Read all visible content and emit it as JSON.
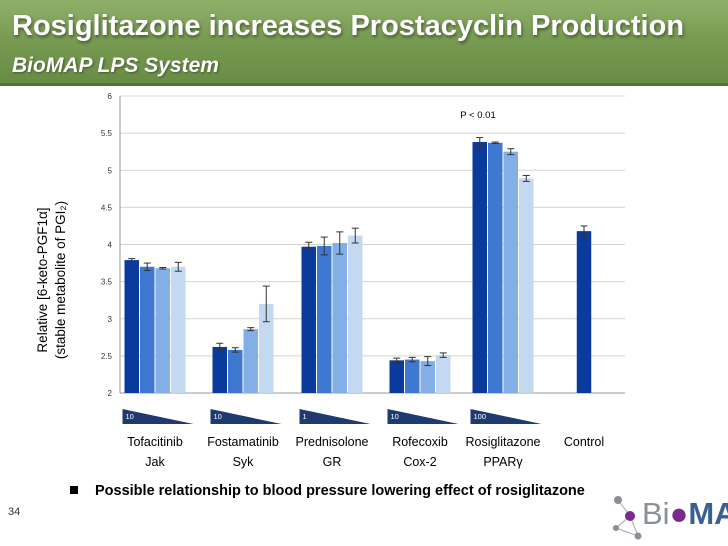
{
  "slide": {
    "title": "Rosiglitazone increases Prostacyclin Production",
    "subtitle": "BioMAP LPS System",
    "page_number": "34",
    "bullet": "Possible relationship to blood pressure lowering effect of rosiglitazone",
    "logo": "BioMAP"
  },
  "colors": {
    "title_bar": "#789b52",
    "series": [
      "#0a3a9c",
      "#3f78d0",
      "#84aee6",
      "#c4d8f2"
    ],
    "control": "#0a3a9c",
    "wedge": "#1e3a70"
  },
  "chart_data": {
    "type": "bar",
    "ylabel_line1": "Relative [6-keto-PGF1α]",
    "ylabel_line2": "(stable metabolite of PGI₂)",
    "ylim": [
      2,
      6
    ],
    "yticks": [
      "2",
      "2.5",
      "3",
      "3.5",
      "4",
      "4.5",
      "5",
      "5.5",
      "6"
    ],
    "grid": true,
    "annotation": "P < 0.01",
    "groups": [
      {
        "label": "Tofacitinib",
        "target": "Jak",
        "top_conc": "10",
        "values": [
          3.79,
          3.7,
          3.68,
          3.7
        ],
        "errors": [
          0.02,
          0.05,
          0.01,
          0.06
        ]
      },
      {
        "label": "Fostamatinib",
        "target": "Syk",
        "top_conc": "10",
        "values": [
          2.62,
          2.58,
          2.86,
          3.2
        ],
        "errors": [
          0.05,
          0.03,
          0.02,
          0.24
        ]
      },
      {
        "label": "Prednisolone",
        "target": "GR",
        "top_conc": "1",
        "values": [
          3.97,
          3.98,
          4.02,
          4.12
        ],
        "errors": [
          0.06,
          0.12,
          0.15,
          0.1
        ]
      },
      {
        "label": "Rofecoxib",
        "target": "Cox-2",
        "top_conc": "10",
        "values": [
          2.44,
          2.45,
          2.43,
          2.51
        ],
        "errors": [
          0.03,
          0.03,
          0.06,
          0.03
        ]
      },
      {
        "label": "Rosiglitazone",
        "target": "PPARγ",
        "top_conc": "100",
        "values": [
          5.38,
          5.37,
          5.25,
          4.89
        ],
        "errors": [
          0.06,
          0.01,
          0.04,
          0.04
        ]
      },
      {
        "label": "Control",
        "target": "",
        "values": [
          4.18
        ],
        "errors": [
          0.07
        ]
      }
    ]
  }
}
